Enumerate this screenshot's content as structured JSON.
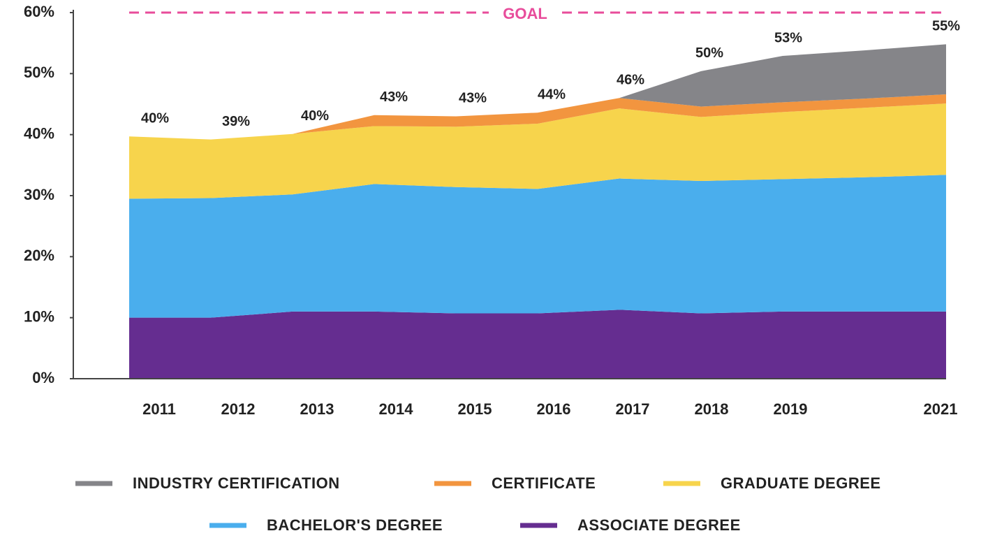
{
  "chart_data": {
    "type": "stacked_area",
    "categories": [
      "2011",
      "2012",
      "2013",
      "2014",
      "2015",
      "2016",
      "2017",
      "2018",
      "2019",
      null,
      "2021"
    ],
    "series": [
      {
        "name": "INDUSTRY CERTIFICATION",
        "color": "#858589",
        "values": [
          0,
          0,
          0,
          0,
          0,
          0,
          0,
          5.8,
          7.6,
          7.9,
          8.2
        ]
      },
      {
        "name": "CERTIFICATE",
        "color": "#f2953f",
        "values": [
          0,
          0,
          0,
          1.8,
          1.7,
          1.8,
          1.7,
          1.7,
          1.6,
          1.5,
          1.5
        ]
      },
      {
        "name": "GRADUATE DEGREE",
        "color": "#f7d44c",
        "values": [
          10.2,
          9.6,
          9.9,
          9.5,
          9.9,
          10.7,
          11.5,
          10.5,
          11,
          11.4,
          11.7
        ]
      },
      {
        "name": "BACHELOR'S DEGREE",
        "color": "#4aaeed",
        "values": [
          19.5,
          19.6,
          19.2,
          20.9,
          20.7,
          20.4,
          21.5,
          21.7,
          21.7,
          22,
          22.4
        ]
      },
      {
        "name": "ASSOCIATE DEGREE",
        "color": "#652d90",
        "values": [
          10,
          10,
          11,
          11,
          10.7,
          10.7,
          11.3,
          10.7,
          11,
          11,
          11
        ]
      }
    ],
    "totals": {
      "values": [
        40,
        39,
        40,
        43,
        43,
        44,
        46,
        50,
        53,
        null,
        55
      ],
      "value_labels": [
        "40%",
        "39%",
        "40%",
        "43%",
        "43%",
        "44%",
        "46%",
        "50%",
        "53%",
        null,
        "55%"
      ]
    },
    "goal": {
      "value": 60,
      "label": "GOAL",
      "color": "#e84c9b"
    },
    "ylim": [
      0,
      60
    ],
    "yticks": [
      {
        "value": 0,
        "label": "0%"
      },
      {
        "value": 10,
        "label": "10%"
      },
      {
        "value": 20,
        "label": "20%"
      },
      {
        "value": 30,
        "label": "30%"
      },
      {
        "value": 40,
        "label": "40%"
      },
      {
        "value": 50,
        "label": "50%"
      },
      {
        "value": 60,
        "label": "60%"
      }
    ]
  }
}
